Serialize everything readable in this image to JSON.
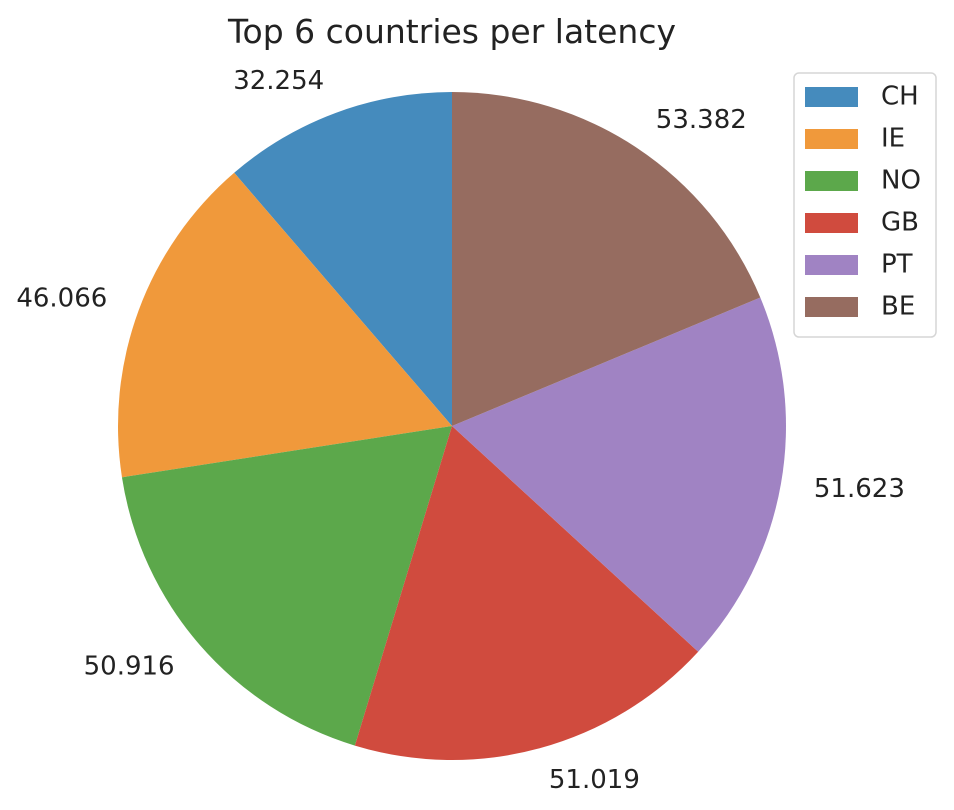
{
  "chart_data": {
    "type": "pie",
    "title": "Top 6 countries per latency",
    "categories": [
      "CH",
      "IE",
      "NO",
      "GB",
      "PT",
      "BE"
    ],
    "values": [
      32.254,
      46.066,
      50.916,
      51.019,
      51.623,
      53.382
    ],
    "value_labels": [
      "32.254",
      "46.066",
      "50.916",
      "51.019",
      "51.623",
      "53.382"
    ],
    "colors": [
      "#458bbd",
      "#f0993b",
      "#5ca84b",
      "#d04b3e",
      "#a083c3",
      "#966c60"
    ],
    "start_angle_deg": 90,
    "direction": "counterclockwise",
    "legend": {
      "position": "top-right",
      "entries": [
        "CH",
        "IE",
        "NO",
        "GB",
        "PT",
        "BE"
      ]
    }
  }
}
